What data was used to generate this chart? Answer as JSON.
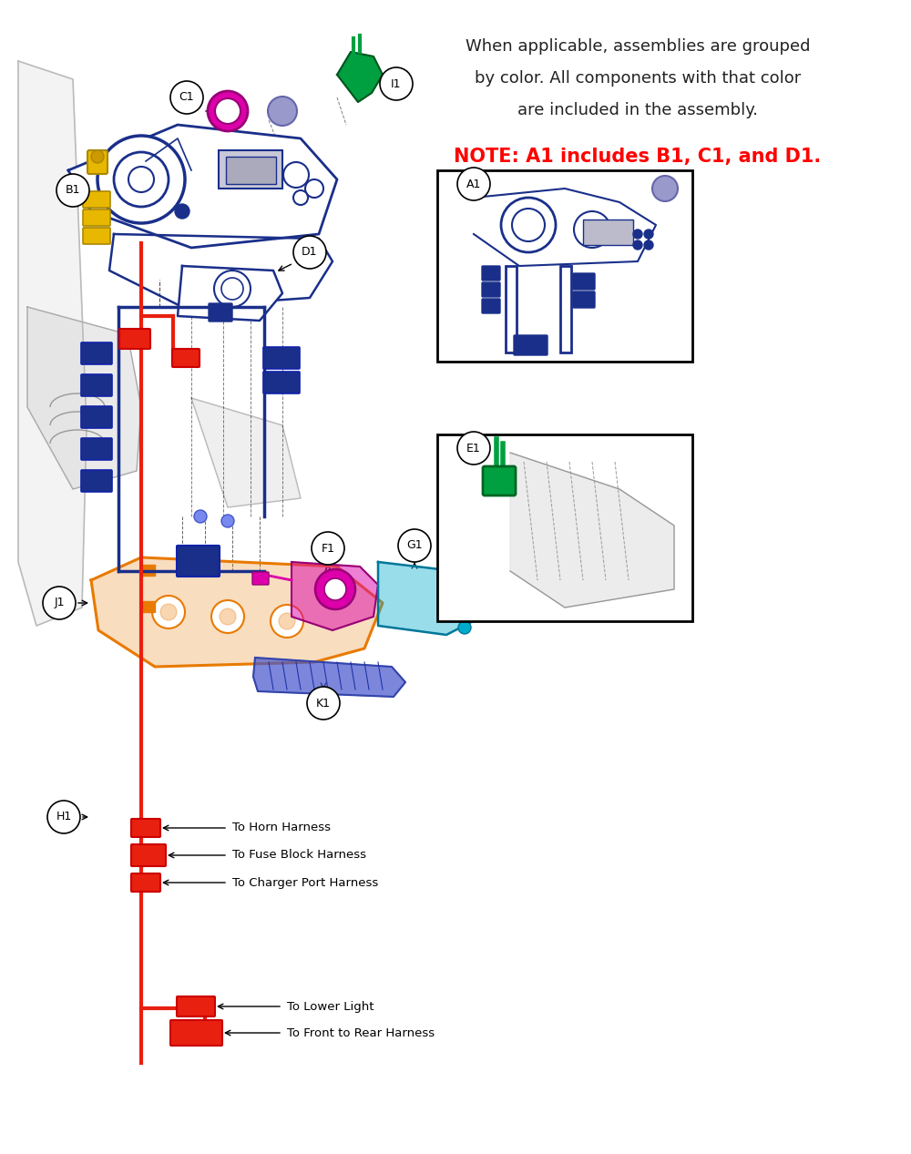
{
  "bg_color": "#ffffff",
  "note_text1": "When applicable, assemblies are grouped",
  "note_text2": "by color. All components with that color",
  "note_text3": "are included in the assembly.",
  "note_red_text": "NOTE: A1 includes B1, C1, and D1.",
  "note_red_color": "#ff0000",
  "note_black_color": "#222222",
  "blue": "#1a2f8a",
  "red": "#e82010",
  "orange": "#e87a00",
  "magenta": "#dd00aa",
  "green": "#00a040",
  "cyan": "#00aacc",
  "yellow": "#e8b800",
  "blue_violet": "#4455cc",
  "gray_light": "#cccccc",
  "gray_med": "#aaaaaa"
}
